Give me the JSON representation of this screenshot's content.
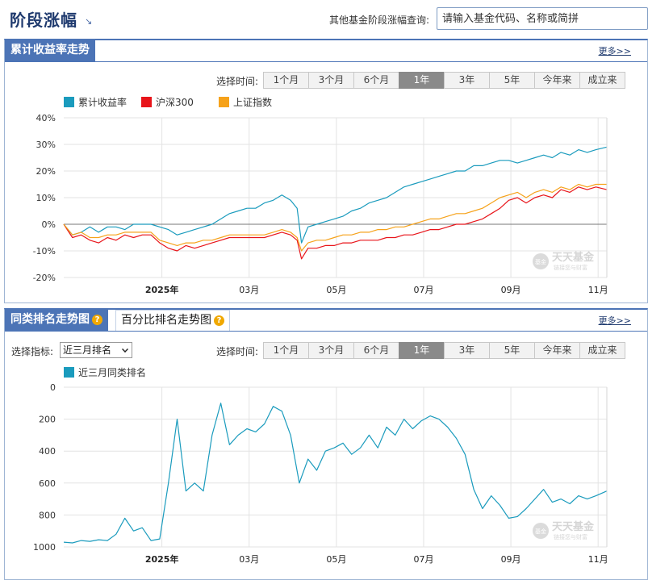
{
  "header": {
    "title": "阶段涨幅",
    "title_arrow": "↘",
    "query_label": "其他基金阶段涨幅查询:",
    "query_placeholder": "请输入基金代码、名称或简拼"
  },
  "section1": {
    "tab_label": "累计收益率走势",
    "more_label": "更多>>",
    "time_label": "选择时间:",
    "time_options": [
      "1个月",
      "3个月",
      "6个月",
      "1年",
      "3年",
      "5年",
      "今年来",
      "成立来"
    ],
    "active_time": "1年"
  },
  "section2": {
    "tab_active": "同类排名走势图",
    "tab_inactive": "百分比排名走势图",
    "help_glyph": "?",
    "more_label": "更多>>",
    "indicator_label": "选择指标:",
    "indicator_value": "近三月排名",
    "time_label": "选择时间:",
    "time_options": [
      "1个月",
      "3个月",
      "6个月",
      "1年",
      "3年",
      "5年",
      "今年来",
      "成立来"
    ],
    "active_time": "1年"
  },
  "watermark": {
    "brand": "天天基金",
    "sub": "链接您与财富",
    "badge": "基金"
  },
  "colors": {
    "accent": "#4c74b6",
    "fund": "#1a9bbd",
    "csi300": "#e8141a",
    "shindex": "#f6a21a",
    "rank": "#1a9bbd",
    "grid": "#e3e3e3",
    "zero_line": "#777777"
  },
  "chart_data": [
    {
      "type": "line",
      "title": "",
      "xlabel": "",
      "ylabel": "",
      "x_tick_labels": [
        "2025年",
        "03月",
        "05月",
        "07月",
        "09月",
        "11月"
      ],
      "x_tick_positions": [
        2.25,
        4.25,
        6.25,
        8.25,
        10.25,
        12.25
      ],
      "x_range": [
        0,
        12.45
      ],
      "ylim": [
        -20,
        40
      ],
      "y_ticks": [
        -20,
        -10,
        0,
        10,
        20,
        30,
        40
      ],
      "y_tick_format": "%",
      "grid": true,
      "legend": "top-left",
      "series": [
        {
          "name": "累计收益率",
          "color": "#1a9bbd",
          "x": [
            0,
            0.2,
            0.4,
            0.6,
            0.8,
            1.0,
            1.2,
            1.4,
            1.6,
            1.8,
            2.0,
            2.2,
            2.4,
            2.6,
            2.8,
            3.0,
            3.2,
            3.4,
            3.6,
            3.8,
            4.0,
            4.2,
            4.4,
            4.6,
            4.8,
            5.0,
            5.2,
            5.35,
            5.45,
            5.6,
            5.8,
            6.0,
            6.2,
            6.4,
            6.6,
            6.8,
            7.0,
            7.2,
            7.4,
            7.6,
            7.8,
            8.0,
            8.2,
            8.4,
            8.6,
            8.8,
            9.0,
            9.2,
            9.4,
            9.6,
            9.8,
            10.0,
            10.2,
            10.4,
            10.6,
            10.8,
            11.0,
            11.2,
            11.4,
            11.6,
            11.8,
            12.0,
            12.2,
            12.45
          ],
          "values": [
            0,
            -4,
            -3,
            -1,
            -3,
            -1,
            -1,
            -2,
            0,
            0,
            0,
            -1,
            -2,
            -4,
            -3,
            -2,
            -1,
            0,
            2,
            4,
            5,
            6,
            6,
            8,
            9,
            11,
            9,
            6,
            -7,
            -1,
            0,
            1,
            2,
            3,
            5,
            6,
            8,
            9,
            10,
            12,
            14,
            15,
            16,
            17,
            18,
            19,
            20,
            20,
            22,
            22,
            23,
            24,
            24,
            23,
            24,
            25,
            26,
            25,
            27,
            26,
            28,
            27,
            28,
            29
          ]
        },
        {
          "name": "沪深300",
          "color": "#e8141a",
          "x": [
            0,
            0.2,
            0.4,
            0.6,
            0.8,
            1.0,
            1.2,
            1.4,
            1.6,
            1.8,
            2.0,
            2.2,
            2.4,
            2.6,
            2.8,
            3.0,
            3.2,
            3.4,
            3.6,
            3.8,
            4.0,
            4.2,
            4.4,
            4.6,
            4.8,
            5.0,
            5.2,
            5.35,
            5.45,
            5.6,
            5.8,
            6.0,
            6.2,
            6.4,
            6.6,
            6.8,
            7.0,
            7.2,
            7.4,
            7.6,
            7.8,
            8.0,
            8.2,
            8.4,
            8.6,
            8.8,
            9.0,
            9.2,
            9.4,
            9.6,
            9.8,
            10.0,
            10.2,
            10.4,
            10.6,
            10.8,
            11.0,
            11.2,
            11.4,
            11.6,
            11.8,
            12.0,
            12.2,
            12.45
          ],
          "values": [
            0,
            -5,
            -4,
            -6,
            -7,
            -5,
            -6,
            -4,
            -5,
            -4,
            -4,
            -7,
            -9,
            -10,
            -8,
            -9,
            -8,
            -7,
            -6,
            -5,
            -5,
            -5,
            -5,
            -5,
            -4,
            -3,
            -4,
            -6,
            -13,
            -9,
            -9,
            -8,
            -8,
            -7,
            -7,
            -6,
            -6,
            -6,
            -5,
            -5,
            -4,
            -4,
            -3,
            -2,
            -2,
            -1,
            0,
            0,
            1,
            2,
            4,
            6,
            9,
            10,
            8,
            10,
            11,
            10,
            13,
            12,
            14,
            13,
            14,
            13
          ]
        },
        {
          "name": "上证指数",
          "color": "#f6a21a",
          "x": [
            0,
            0.2,
            0.4,
            0.6,
            0.8,
            1.0,
            1.2,
            1.4,
            1.6,
            1.8,
            2.0,
            2.2,
            2.4,
            2.6,
            2.8,
            3.0,
            3.2,
            3.4,
            3.6,
            3.8,
            4.0,
            4.2,
            4.4,
            4.6,
            4.8,
            5.0,
            5.2,
            5.35,
            5.45,
            5.6,
            5.8,
            6.0,
            6.2,
            6.4,
            6.6,
            6.8,
            7.0,
            7.2,
            7.4,
            7.6,
            7.8,
            8.0,
            8.2,
            8.4,
            8.6,
            8.8,
            9.0,
            9.2,
            9.4,
            9.6,
            9.8,
            10.0,
            10.2,
            10.4,
            10.6,
            10.8,
            11.0,
            11.2,
            11.4,
            11.6,
            11.8,
            12.0,
            12.2,
            12.45
          ],
          "values": [
            0,
            -4,
            -3,
            -5,
            -5,
            -4,
            -4,
            -3,
            -3,
            -3,
            -3,
            -6,
            -7,
            -8,
            -7,
            -7,
            -6,
            -6,
            -5,
            -4,
            -4,
            -4,
            -4,
            -4,
            -3,
            -2,
            -3,
            -5,
            -10,
            -7,
            -6,
            -6,
            -5,
            -4,
            -4,
            -3,
            -3,
            -2,
            -2,
            -1,
            -1,
            0,
            1,
            2,
            2,
            3,
            4,
            4,
            5,
            6,
            8,
            10,
            11,
            12,
            10,
            12,
            13,
            12,
            14,
            13,
            15,
            14,
            15,
            15
          ]
        }
      ]
    },
    {
      "type": "line",
      "title": "",
      "xlabel": "",
      "ylabel": "",
      "x_tick_labels": [
        "2025年",
        "03月",
        "05月",
        "07月",
        "09月",
        "11月"
      ],
      "x_tick_positions": [
        2.25,
        4.25,
        6.25,
        8.25,
        10.25,
        12.25
      ],
      "x_range": [
        0,
        12.45
      ],
      "ylim": [
        0,
        1000
      ],
      "y_inverted": true,
      "y_ticks": [
        0,
        200,
        400,
        600,
        800,
        1000
      ],
      "grid": true,
      "legend": "top-left",
      "series": [
        {
          "name": "近三月同类排名",
          "color": "#1a9bbd",
          "x": [
            0,
            0.2,
            0.4,
            0.6,
            0.8,
            1.0,
            1.2,
            1.4,
            1.6,
            1.8,
            2.0,
            2.2,
            2.4,
            2.6,
            2.8,
            3.0,
            3.2,
            3.4,
            3.6,
            3.8,
            4.0,
            4.2,
            4.4,
            4.6,
            4.8,
            5.0,
            5.2,
            5.4,
            5.6,
            5.8,
            6.0,
            6.2,
            6.4,
            6.6,
            6.8,
            7.0,
            7.2,
            7.4,
            7.6,
            7.8,
            8.0,
            8.2,
            8.4,
            8.6,
            8.8,
            9.0,
            9.2,
            9.4,
            9.6,
            9.8,
            10.0,
            10.2,
            10.4,
            10.6,
            10.8,
            11.0,
            11.2,
            11.4,
            11.6,
            11.8,
            12.0,
            12.2,
            12.45
          ],
          "values": [
            970,
            975,
            960,
            965,
            955,
            960,
            920,
            820,
            900,
            880,
            960,
            950,
            600,
            200,
            650,
            600,
            650,
            300,
            100,
            360,
            300,
            260,
            280,
            230,
            120,
            150,
            300,
            600,
            450,
            520,
            400,
            380,
            350,
            420,
            380,
            300,
            380,
            250,
            300,
            200,
            260,
            210,
            180,
            200,
            250,
            320,
            420,
            640,
            760,
            680,
            740,
            820,
            810,
            760,
            700,
            640,
            720,
            700,
            730,
            680,
            700,
            680,
            650
          ]
        }
      ]
    }
  ]
}
